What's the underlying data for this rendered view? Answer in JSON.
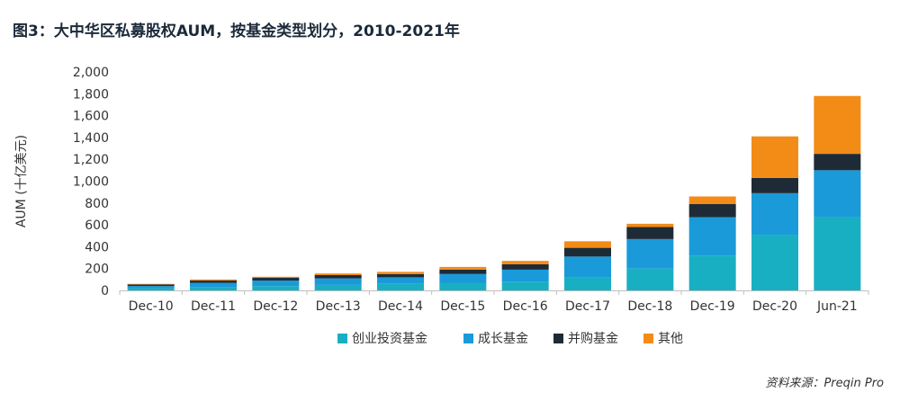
{
  "title": "图3：大中华区私募股权AUM，按基金类型划分，2010-2021年",
  "source": "资料来源：Preqin Pro",
  "chart_data": {
    "type": "bar",
    "stacked": true,
    "title": "图3：大中华区私募股权AUM，按基金类型划分，2010-2021年",
    "xlabel": "",
    "ylabel": "AUM (十亿美元)",
    "ylim": [
      0,
      2000
    ],
    "yticks": [
      0,
      200,
      400,
      600,
      800,
      1000,
      1200,
      1400,
      1600,
      1800,
      2000
    ],
    "ytick_labels": [
      "0",
      "200",
      "400",
      "600",
      "800",
      "1,000",
      "1,200",
      "1,400",
      "1,600",
      "1,800",
      "2,000"
    ],
    "grid": false,
    "legend_position": "bottom",
    "categories": [
      "Dec-10",
      "Dec-11",
      "Dec-12",
      "Dec-13",
      "Dec-14",
      "Dec-15",
      "Dec-16",
      "Dec-17",
      "Dec-18",
      "Dec-19",
      "Dec-20",
      "Jun-21"
    ],
    "series": [
      {
        "name": "创业投资基金",
        "color": "#19afc3",
        "values": [
          20,
          30,
          40,
          50,
          60,
          70,
          80,
          120,
          200,
          320,
          510,
          670
        ]
      },
      {
        "name": "成长基金",
        "color": "#1a9ad9",
        "values": [
          20,
          40,
          50,
          60,
          60,
          80,
          110,
          190,
          270,
          350,
          380,
          430
        ]
      },
      {
        "name": "并购基金",
        "color": "#1e2b37",
        "values": [
          15,
          20,
          25,
          30,
          30,
          40,
          50,
          80,
          110,
          120,
          140,
          150
        ]
      },
      {
        "name": "其他",
        "color": "#f38b17",
        "values": [
          5,
          10,
          10,
          15,
          20,
          25,
          30,
          60,
          30,
          70,
          380,
          530
        ]
      }
    ]
  }
}
